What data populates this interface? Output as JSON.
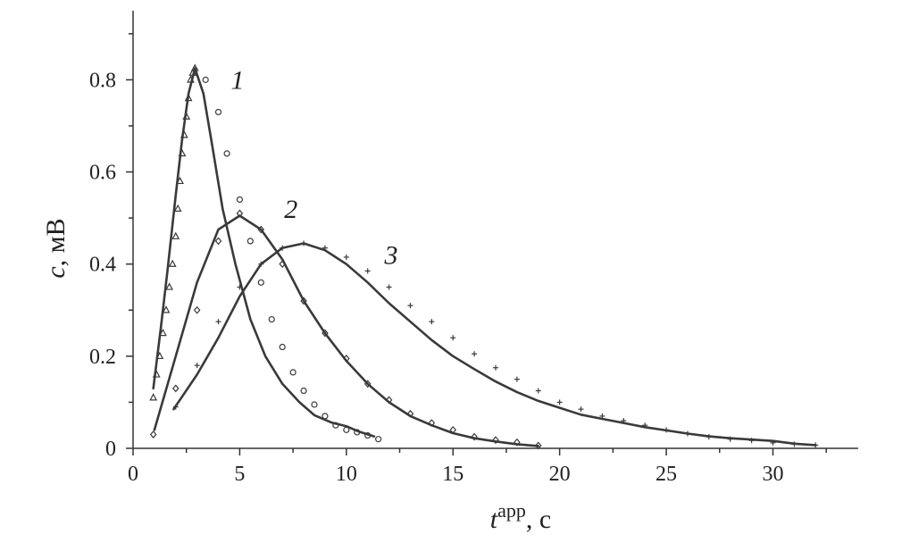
{
  "chart_data": {
    "type": "line",
    "xlabel": {
      "main": "t",
      "sup": "app",
      "unit": ", с"
    },
    "ylabel": {
      "main": "c",
      "unit": ", мВ"
    },
    "xlim": [
      0,
      34
    ],
    "ylim": [
      0,
      0.95
    ],
    "x_ticks": [
      0,
      5,
      10,
      15,
      20,
      25,
      30
    ],
    "x_tick_labels": [
      "0",
      "5",
      "10",
      "15",
      "20",
      "25",
      "30"
    ],
    "y_ticks": [
      0,
      0.2,
      0.4,
      0.6,
      0.8
    ],
    "y_tick_labels": [
      "0",
      "0.2",
      "0.4",
      "0.6",
      "0.8"
    ],
    "grid": false,
    "series": [
      {
        "name": "1",
        "marker": "triangle",
        "label_pos": [
          4.9,
          0.8
        ],
        "fit": {
          "x": [
            0.95,
            1.3,
            1.6,
            2.0,
            2.3,
            2.6,
            2.9,
            3.3,
            3.7,
            4.2,
            4.8,
            5.5,
            6.2,
            7.0,
            7.8,
            8.5,
            9.3,
            10.0,
            10.6,
            11.3
          ],
          "y": [
            0.13,
            0.26,
            0.38,
            0.55,
            0.67,
            0.77,
            0.825,
            0.77,
            0.66,
            0.52,
            0.4,
            0.28,
            0.2,
            0.14,
            0.1,
            0.072,
            0.056,
            0.048,
            0.036,
            0.026
          ]
        },
        "points": {
          "x": [
            0.95,
            1.1,
            1.25,
            1.4,
            1.55,
            1.7,
            1.85,
            2.0,
            2.1,
            2.2,
            2.3,
            2.4,
            2.5,
            2.6,
            2.7,
            2.8,
            2.9
          ],
          "y": [
            0.11,
            0.16,
            0.2,
            0.25,
            0.3,
            0.35,
            0.4,
            0.46,
            0.52,
            0.58,
            0.64,
            0.68,
            0.72,
            0.76,
            0.8,
            0.815,
            0.825
          ]
        },
        "points2": {
          "marker": "circle",
          "x": [
            3.4,
            4.0,
            4.4,
            5.0,
            5.5,
            6.0,
            6.5,
            7.0,
            7.5,
            8.0,
            8.5,
            9.0,
            9.5,
            10.0,
            10.5,
            11.0,
            11.5
          ],
          "y": [
            0.8,
            0.73,
            0.64,
            0.54,
            0.45,
            0.36,
            0.28,
            0.22,
            0.165,
            0.125,
            0.095,
            0.07,
            0.05,
            0.04,
            0.035,
            0.028,
            0.02
          ]
        }
      },
      {
        "name": "2",
        "marker": "diamond",
        "label_pos": [
          7.4,
          0.52
        ],
        "fit": {
          "x": [
            1.0,
            2.0,
            3.0,
            4.0,
            5.0,
            6.0,
            7.0,
            8.0,
            9.0,
            10.0,
            11.0,
            12.0,
            13.0,
            14.0,
            15.0,
            16.0,
            17.0,
            18.0,
            19.0
          ],
          "y": [
            0.04,
            0.2,
            0.36,
            0.475,
            0.505,
            0.475,
            0.41,
            0.32,
            0.25,
            0.19,
            0.14,
            0.1,
            0.07,
            0.05,
            0.033,
            0.022,
            0.015,
            0.009,
            0.005
          ]
        },
        "points": {
          "x": [
            0.95,
            2.0,
            3.0,
            4.0,
            5.0,
            6.0,
            7.0,
            8.0,
            9.0,
            10.0,
            11.0,
            12.0,
            13.0,
            14.0,
            15.0,
            16.0,
            17.0,
            18.0,
            19.0
          ],
          "y": [
            0.03,
            0.13,
            0.3,
            0.45,
            0.51,
            0.475,
            0.4,
            0.32,
            0.25,
            0.195,
            0.14,
            0.105,
            0.075,
            0.055,
            0.04,
            0.025,
            0.018,
            0.013,
            0.006
          ]
        }
      },
      {
        "name": "3",
        "marker": "plus",
        "label_pos": [
          12.1,
          0.42
        ],
        "fit": {
          "x": [
            1.9,
            3.0,
            4.0,
            5.0,
            6.0,
            7.0,
            8.0,
            9.0,
            10.0,
            11.0,
            12.0,
            13.0,
            14.0,
            15.0,
            16.0,
            17.0,
            18.0,
            19.0,
            20.0,
            21.0,
            22.0,
            23.0,
            24.0,
            25.0,
            26.0,
            27.0,
            28.0,
            29.0,
            30.0,
            31.0,
            32.0
          ],
          "y": [
            0.085,
            0.16,
            0.24,
            0.33,
            0.4,
            0.435,
            0.445,
            0.43,
            0.4,
            0.36,
            0.315,
            0.275,
            0.235,
            0.2,
            0.172,
            0.145,
            0.122,
            0.103,
            0.088,
            0.073,
            0.064,
            0.055,
            0.046,
            0.039,
            0.032,
            0.026,
            0.022,
            0.019,
            0.016,
            0.01,
            0.007
          ]
        },
        "points": {
          "x": [
            2.0,
            3.0,
            4.0,
            5.0,
            6.0,
            7.0,
            8.0,
            9.0,
            10.0,
            11.0,
            12.0,
            13.0,
            14.0,
            15.0,
            16.0,
            17.0,
            18.0,
            19.0,
            20.0,
            21.0,
            22.0,
            23.0,
            24.0,
            25.0,
            26.0,
            27.0,
            28.0,
            29.0,
            30.0,
            31.0,
            32.0
          ],
          "y": [
            0.09,
            0.18,
            0.275,
            0.35,
            0.4,
            0.435,
            0.445,
            0.435,
            0.415,
            0.385,
            0.35,
            0.31,
            0.275,
            0.24,
            0.205,
            0.175,
            0.15,
            0.125,
            0.1,
            0.085,
            0.07,
            0.06,
            0.05,
            0.04,
            0.032,
            0.025,
            0.02,
            0.017,
            0.012,
            0.009,
            0.007
          ]
        }
      }
    ]
  }
}
